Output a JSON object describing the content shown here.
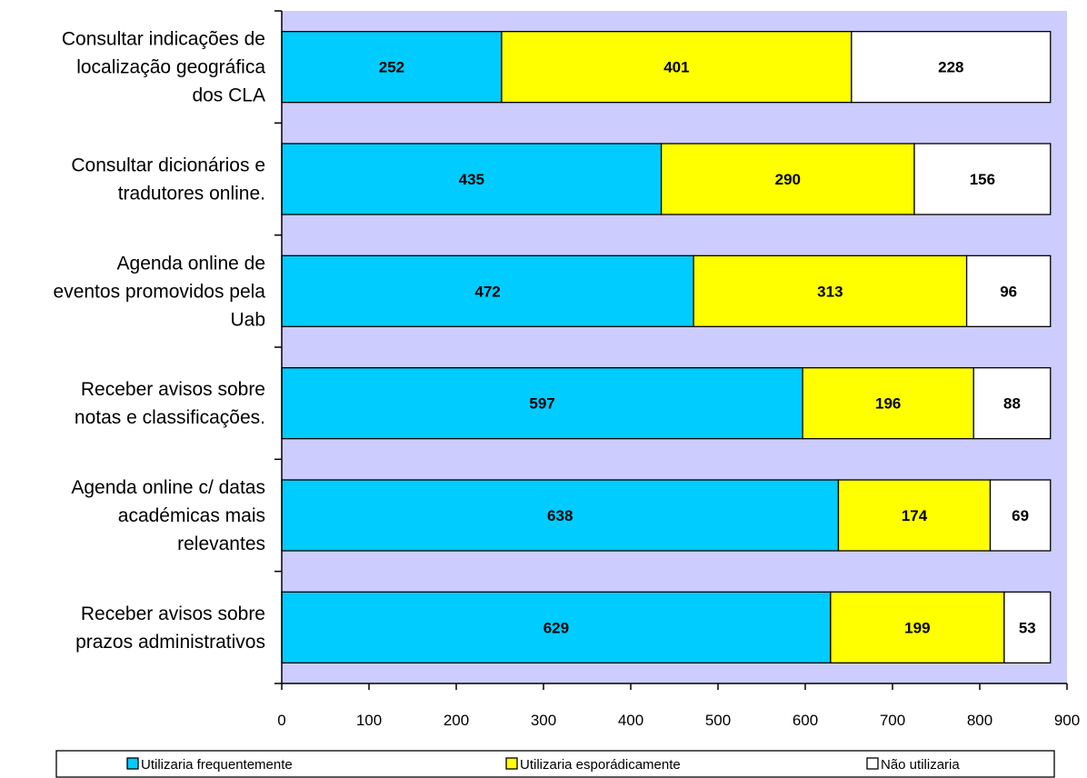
{
  "chart_data": {
    "type": "bar",
    "orientation": "horizontal",
    "stacked": true,
    "categories": [
      [
        "Consultar indicações de",
        "localização geográfica",
        "dos CLA"
      ],
      [
        "Consultar dicionários e",
        "tradutores online."
      ],
      [
        "Agenda online de",
        "eventos promovidos pela",
        "Uab"
      ],
      [
        "Receber avisos sobre",
        "notas e classificações."
      ],
      [
        "Agenda online c/ datas",
        "académicas mais",
        "relevantes"
      ],
      [
        "Receber avisos sobre",
        "prazos administrativos"
      ]
    ],
    "series": [
      {
        "name": "Utilizaria frequentemente",
        "color": "#00CCFF",
        "values": [
          252,
          435,
          472,
          597,
          638,
          629
        ]
      },
      {
        "name": "Utilizaria esporádicamente",
        "color": "#FFFF00",
        "values": [
          401,
          290,
          313,
          196,
          174,
          199
        ]
      },
      {
        "name": "Não utilizaria",
        "color": "#FFFFFF",
        "values": [
          228,
          156,
          96,
          88,
          69,
          53
        ]
      }
    ],
    "xlim": [
      0,
      900
    ],
    "xticks": [
      "0",
      "100",
      "200",
      "300",
      "400",
      "500",
      "600",
      "700",
      "800",
      "900"
    ],
    "plot_background": "#CCCCFF",
    "grid": false,
    "legend_position": "bottom"
  }
}
